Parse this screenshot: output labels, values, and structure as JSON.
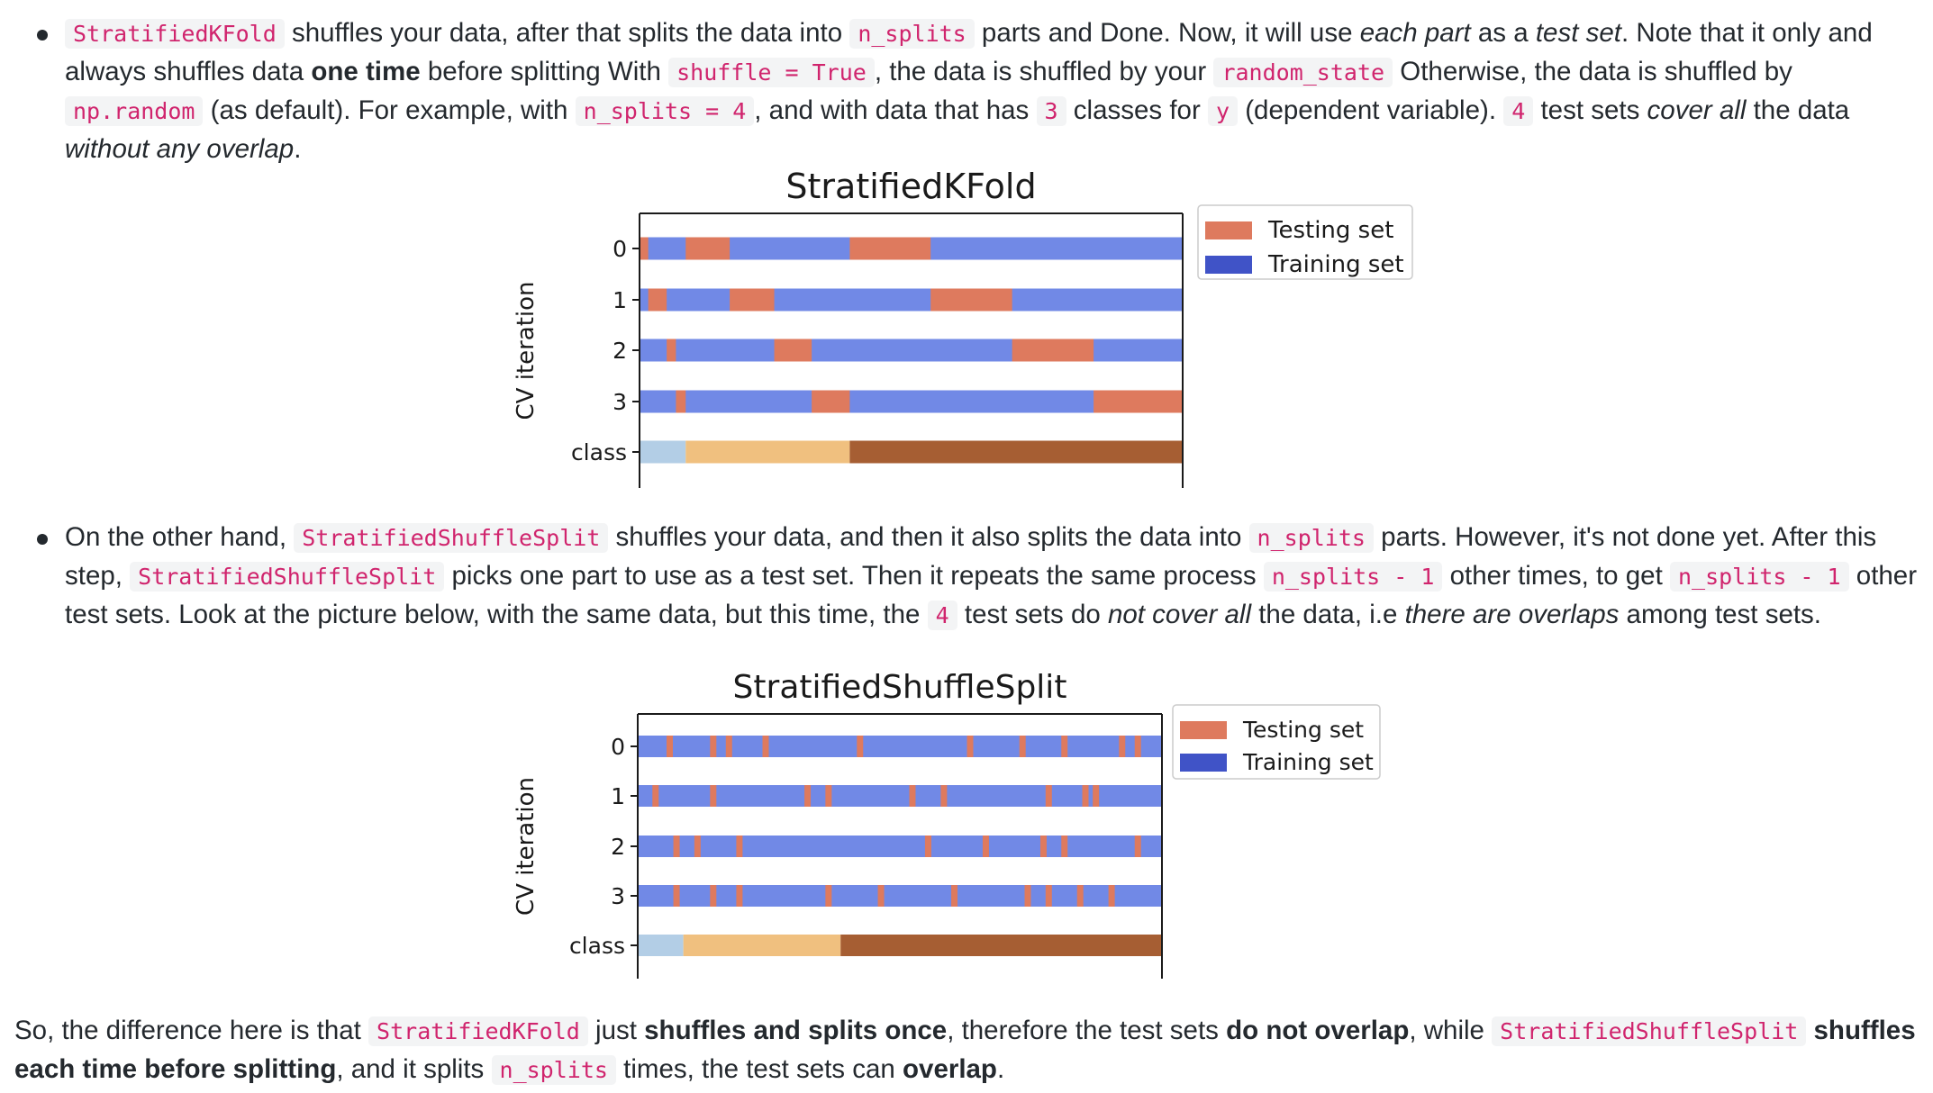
{
  "bullet1": {
    "c1": "StratifiedKFold",
    "t1": " shuffles your data, after that splits the data into ",
    "c2": "n_splits",
    "t2": " parts and Done. Now, it will use ",
    "e1": "each part",
    "t3": " as a ",
    "e2": "test set",
    "t4": ". Note that it only and always shuffles data ",
    "b1": "one time",
    "t5": " before splitting With ",
    "c3": "shuffle = True",
    "t6": ", the data is shuffled by your ",
    "c4": "random_state",
    "t7": " Otherwise, the data is shuffled by ",
    "c5": "np.random",
    "t8": " (as default). For example, with ",
    "c6": "n_splits = 4",
    "t9": ", and with data that has ",
    "c7": "3",
    "t10": " classes for ",
    "c8": "y",
    "t11": " (dependent variable). ",
    "c9": "4",
    "t12": " test sets ",
    "e3": "cover all",
    "t13": " the data ",
    "e4": "without any overlap",
    "t14": "."
  },
  "bullet2": {
    "t1": "On the other hand, ",
    "c1": "StratifiedShuffleSplit",
    "t2": " shuffles your data, and then it also splits the data into ",
    "c2": "n_splits",
    "t3": " parts. However, it's not done yet. After this step, ",
    "c3": "StratifiedShuffleSplit",
    "t4": " picks one part to use as a test set. Then it repeats the same process ",
    "c4": "n_splits - 1",
    "t5": " other times, to get ",
    "c5": "n_splits - 1",
    "t6": " other test sets. Look at the picture below, with the same data, but this time, the ",
    "c6": "4",
    "t7": " test sets do ",
    "e1": "not cover all",
    "t8": " the data, i.e ",
    "e2": "there are overlaps",
    "t9": " among test sets."
  },
  "conclusion": {
    "t1": "So, the difference here is that ",
    "c1": "StratifiedKFold",
    "t2": " just ",
    "b1": "shuffles and splits once",
    "t3": ", therefore the test sets ",
    "b2": "do not overlap",
    "t4": ", while ",
    "c2": "StratifiedShuffleSplit",
    "t5": " ",
    "b3": "shuffles each time before splitting",
    "t6": ", and it splits ",
    "c3": "n_splits",
    "t7": " times, the test sets can ",
    "b4": "overlap",
    "t8": "."
  },
  "colors": {
    "testing": "#de7a5e",
    "training": "#7189e6",
    "legend_training": "#4053c7",
    "class_a": "#b3cee6",
    "class_b": "#f0c07f",
    "class_c": "#a65e33"
  },
  "chart_data": [
    {
      "type": "bar",
      "title": "StratifiedKFold",
      "ylabel": "CV iteration",
      "xlabel": "",
      "categories": [
        "0",
        "1",
        "2",
        "3",
        "class"
      ],
      "legend": {
        "placement": "outside-right-top",
        "entries": [
          "Testing set",
          "Training set"
        ]
      },
      "grid": false,
      "class_segments": [
        {
          "class": "a",
          "start": 0.0,
          "end": 0.085
        },
        {
          "class": "b",
          "start": 0.085,
          "end": 0.387
        },
        {
          "class": "c",
          "start": 0.387,
          "end": 1.0
        }
      ],
      "test_segments": [
        [
          [
            0.0,
            0.016
          ],
          [
            0.085,
            0.166
          ],
          [
            0.387,
            0.536
          ]
        ],
        [
          [
            0.016,
            0.05
          ],
          [
            0.166,
            0.248
          ],
          [
            0.536,
            0.686
          ]
        ],
        [
          [
            0.05,
            0.067
          ],
          [
            0.248,
            0.317
          ],
          [
            0.686,
            0.836
          ]
        ],
        [
          [
            0.067,
            0.085
          ],
          [
            0.317,
            0.387
          ],
          [
            0.836,
            1.0
          ]
        ]
      ]
    },
    {
      "type": "bar",
      "title": "StratifiedShuffleSplit",
      "ylabel": "CV iteration",
      "xlabel": "",
      "categories": [
        "0",
        "1",
        "2",
        "3",
        "class"
      ],
      "legend": {
        "placement": "outside-right-top",
        "entries": [
          "Testing set",
          "Training set"
        ]
      },
      "grid": false,
      "class_segments": [
        {
          "class": "a",
          "start": 0.0,
          "end": 0.087
        },
        {
          "class": "b",
          "start": 0.087,
          "end": 0.387
        },
        {
          "class": "c",
          "start": 0.387,
          "end": 1.0
        }
      ],
      "test_positions": [
        [
          0.055,
          0.138,
          0.168,
          0.238,
          0.418,
          0.628,
          0.728,
          0.808,
          0.918,
          0.948
        ],
        [
          0.028,
          0.138,
          0.318,
          0.358,
          0.518,
          0.578,
          0.778,
          0.848,
          0.868
        ],
        [
          0.068,
          0.108,
          0.188,
          0.548,
          0.658,
          0.768,
          0.808,
          0.948
        ],
        [
          0.068,
          0.138,
          0.188,
          0.358,
          0.458,
          0.598,
          0.738,
          0.778,
          0.838,
          0.898
        ]
      ],
      "test_width": 0.012
    }
  ]
}
